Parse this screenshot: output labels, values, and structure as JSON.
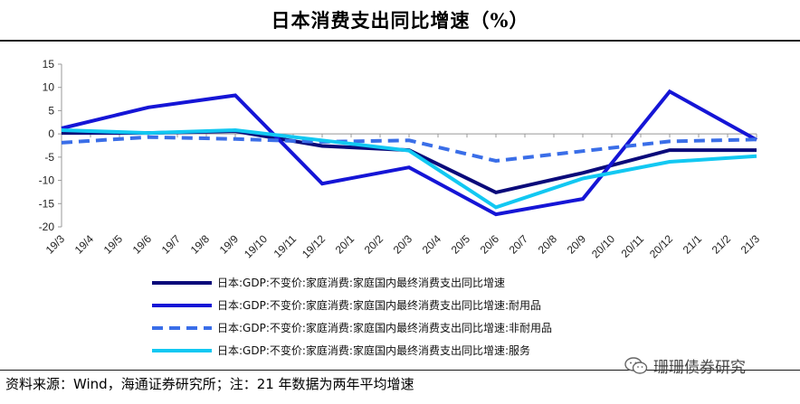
{
  "title": "日本消费支出同比增速（%）",
  "footer": "资料来源：Wind，海通证券研究所；注：21 年数据为两年平均增速",
  "watermark": "珊珊债券研究",
  "chart_data": {
    "type": "line",
    "title": "日本消费支出同比增速（%）",
    "categories": [
      "19/3",
      "19/4",
      "19/5",
      "19/6",
      "19/7",
      "19/8",
      "19/9",
      "19/10",
      "19/11",
      "19/12",
      "20/1",
      "20/2",
      "20/3",
      "20/4",
      "20/5",
      "20/6",
      "20/7",
      "20/8",
      "20/9",
      "20/10",
      "20/11",
      "20/12",
      "21/1",
      "21/2",
      "21/3"
    ],
    "ylim": [
      -20,
      15
    ],
    "yticks": [
      15,
      10,
      5,
      0,
      -5,
      -10,
      -15,
      -20
    ],
    "series": [
      {
        "name": "日本:GDP:不变价:家庭消费:家庭国内最终消费支出同比增速",
        "color": "#0a0a7a",
        "dash": "solid",
        "x": [
          0,
          3,
          6,
          9,
          12,
          15,
          18,
          21,
          24
        ],
        "values": [
          0.2,
          0.2,
          0.6,
          -2.6,
          -3.5,
          -12.6,
          -8.4,
          -3.5,
          -3.5
        ]
      },
      {
        "name": "日本:GDP:不变价:家庭消费:家庭国内最终消费支出同比增速:耐用品",
        "color": "#1515d6",
        "dash": "solid",
        "x": [
          0,
          3,
          6,
          9,
          12,
          15,
          18,
          21,
          24
        ],
        "values": [
          1.2,
          5.7,
          8.3,
          -10.7,
          -7.2,
          -17.3,
          -14.0,
          9.1,
          -1.3
        ]
      },
      {
        "name": "日本:GDP:不变价:家庭消费:家庭国内最终消费支出同比增速:非耐用品",
        "color": "#3a6ee8",
        "dash": "dashed",
        "x": [
          0,
          3,
          6,
          9,
          12,
          15,
          18,
          21,
          24
        ],
        "values": [
          -1.9,
          -0.7,
          -1.1,
          -1.7,
          -1.4,
          -5.8,
          -3.7,
          -1.6,
          -1.2
        ]
      },
      {
        "name": "日本:GDP:不变价:家庭消费:家庭国内最终消费支出同比增速:服务",
        "color": "#12c8f2",
        "dash": "solid",
        "x": [
          0,
          3,
          6,
          9,
          12,
          15,
          18,
          21,
          24
        ],
        "values": [
          0.8,
          0.2,
          0.8,
          -1.4,
          -3.6,
          -15.8,
          -9.6,
          -6.0,
          -4.8
        ]
      }
    ]
  }
}
